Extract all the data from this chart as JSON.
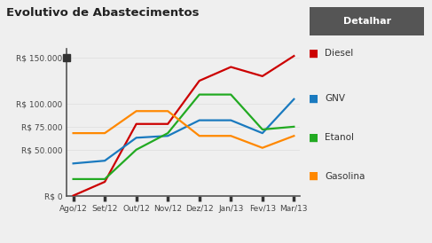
{
  "title": "Evolutivo de Abastecimentos",
  "button_label": "Detalhar",
  "x_labels": [
    "Ago/12",
    "Set/12",
    "Out/12",
    "Nov/12",
    "Dez/12",
    "Jan/13",
    "Fev/13",
    "Mar/13"
  ],
  "diesel_y": [
    0,
    15000,
    78000,
    78000,
    125000,
    140000,
    130000,
    152000
  ],
  "gnv_y": [
    35000,
    38000,
    63000,
    65000,
    82000,
    82000,
    68000,
    105000
  ],
  "etanol_y": [
    18000,
    18000,
    50000,
    68000,
    110000,
    110000,
    72000,
    75000
  ],
  "gasolina_y": [
    68000,
    68000,
    92000,
    92000,
    65000,
    65000,
    52000,
    65000
  ],
  "colors": {
    "Diesel": "#cc0000",
    "GNV": "#1a7abf",
    "Etanol": "#22aa22",
    "Gasolina": "#ff8800"
  },
  "ylim": [
    0,
    160000
  ],
  "yticks": [
    0,
    50000,
    75000,
    100000,
    150000
  ],
  "ytick_labels": [
    "R$ 0",
    "R$ 50.000",
    "R$ 75.000",
    "R$ 100.000",
    "R$ 150.000"
  ],
  "bg_color": "#efefef",
  "button_bg": "#555555",
  "button_text_color": "#ffffff",
  "title_color": "#222222",
  "tick_color": "#444444",
  "spine_color": "#555555",
  "grid_color": "#dddddd",
  "lw": 1.6
}
